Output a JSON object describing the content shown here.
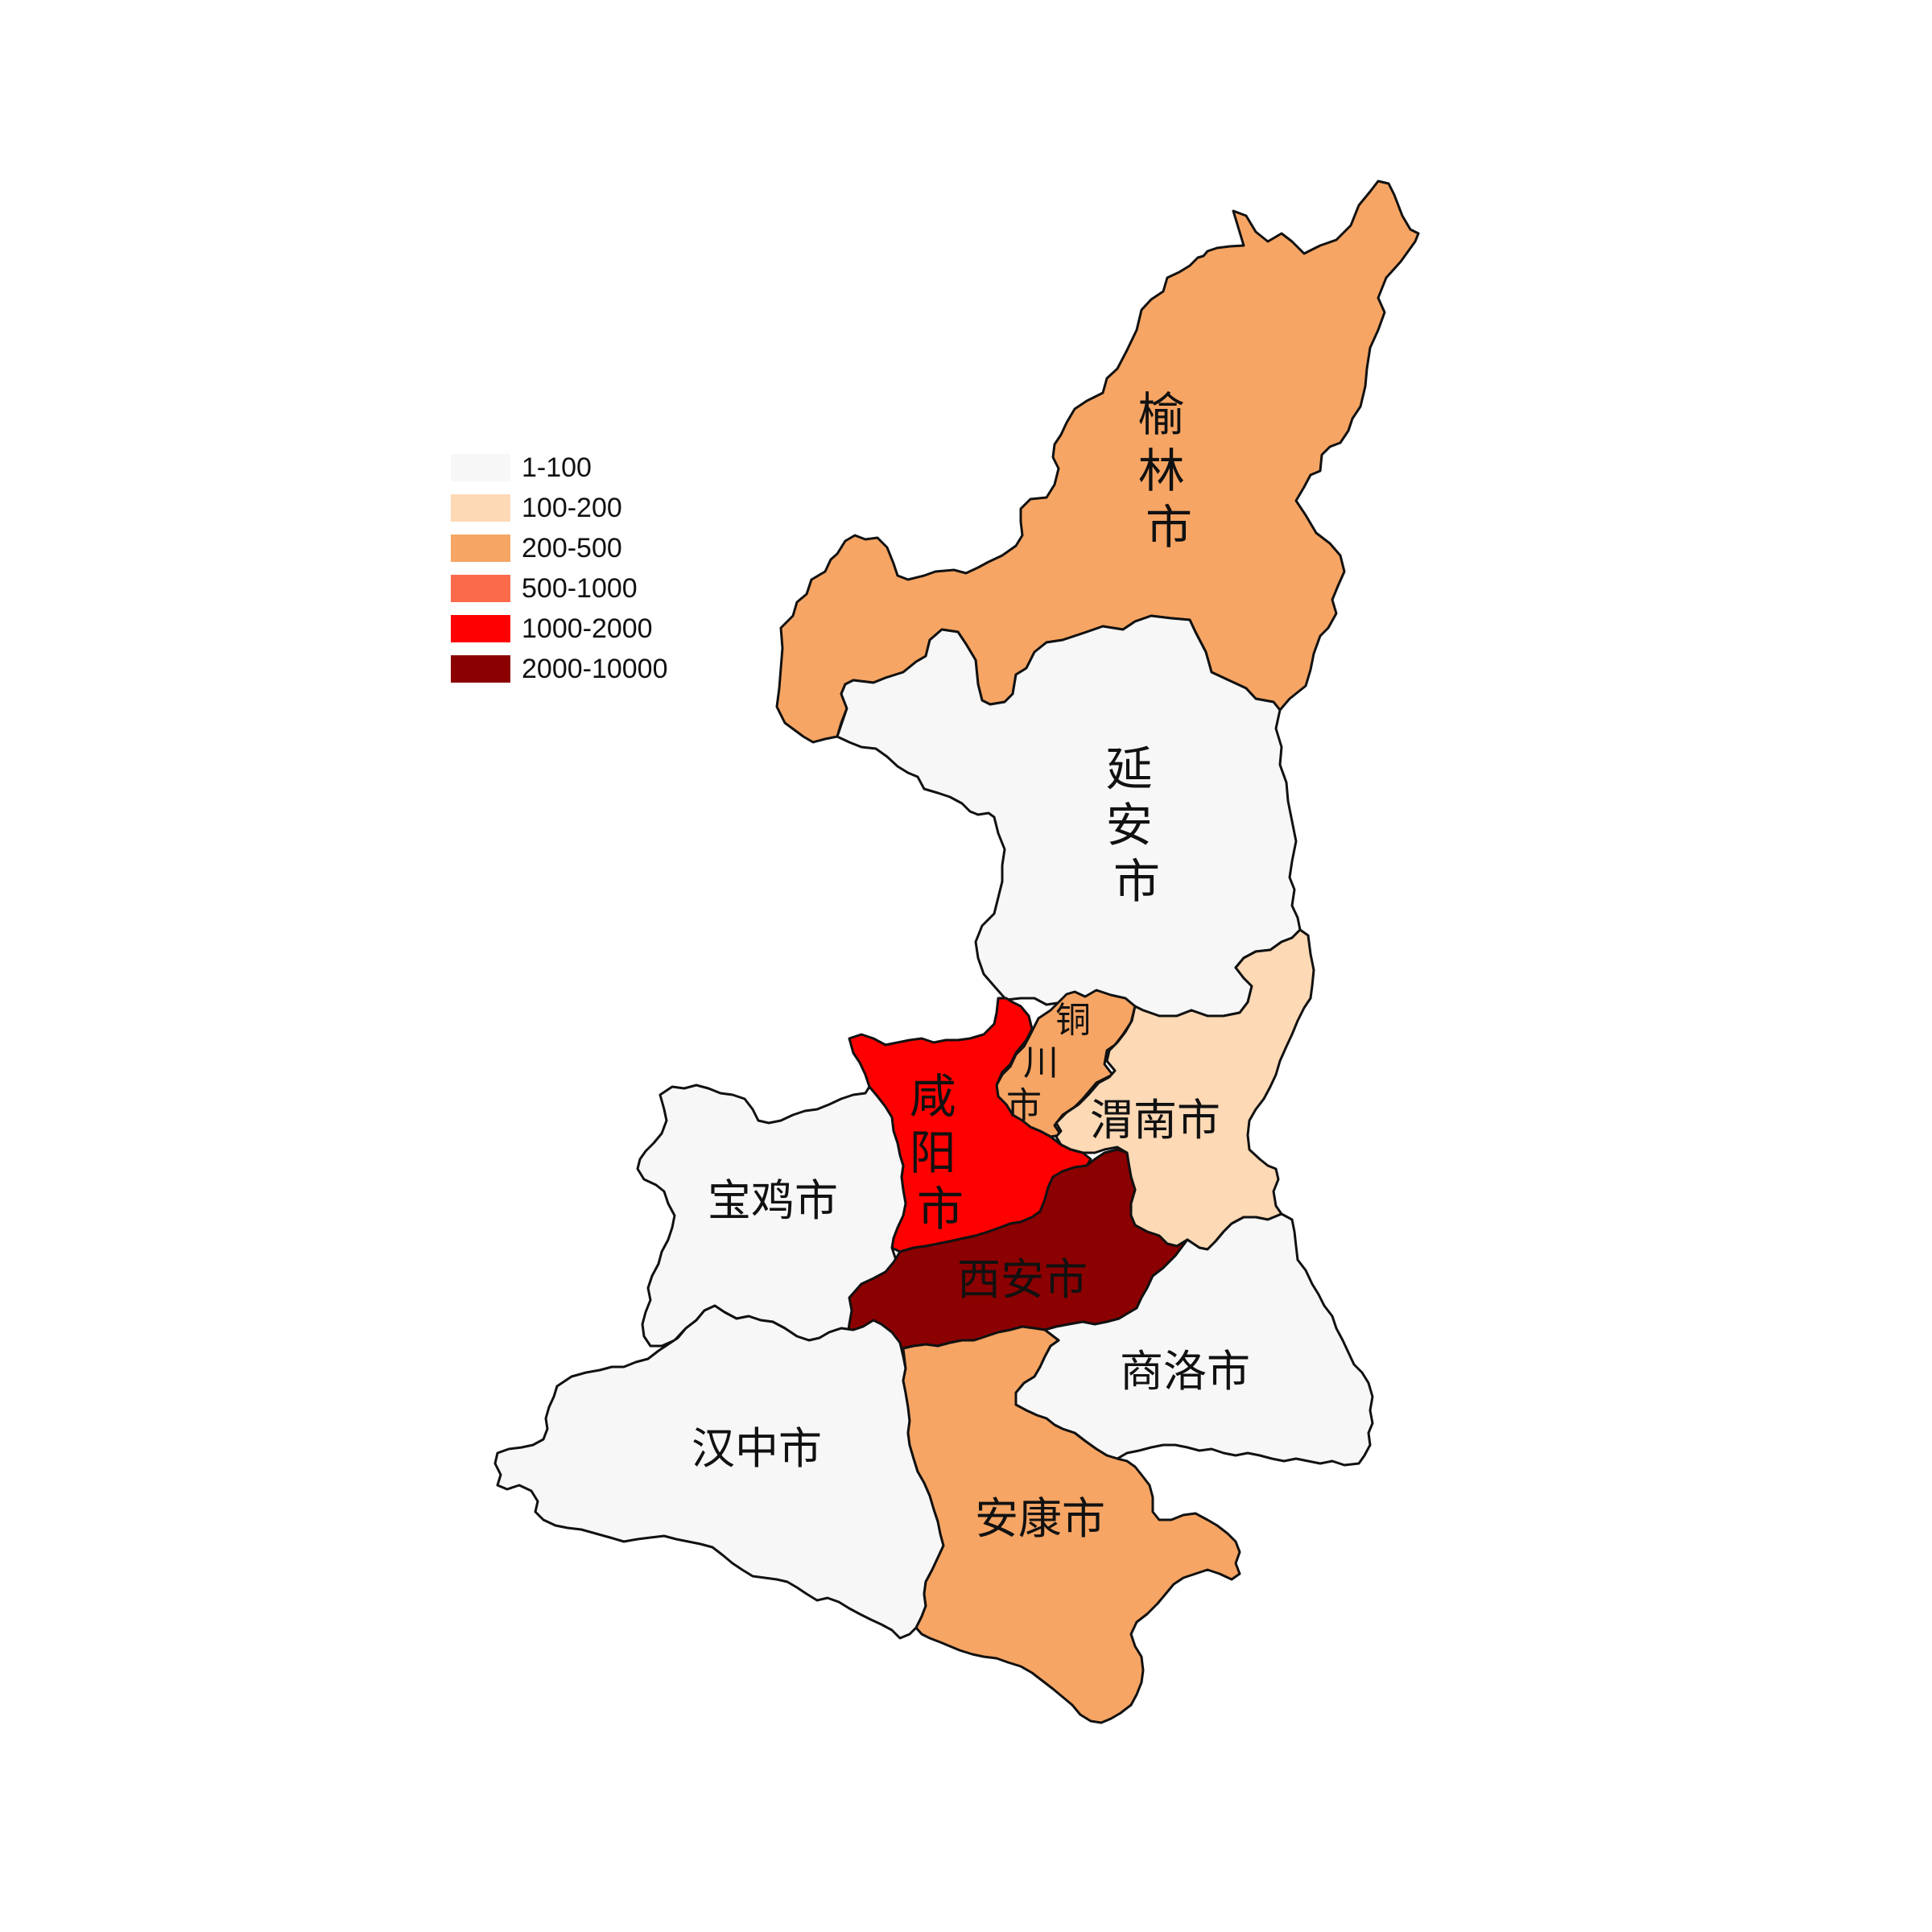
{
  "map": {
    "regions": [
      {
        "id": "yulin",
        "label": "榆林市",
        "bin": 2
      },
      {
        "id": "yanan",
        "label": "延安市",
        "bin": 0
      },
      {
        "id": "tongchuan",
        "label": "铜川市",
        "bin": 2
      },
      {
        "id": "weinan",
        "label": "渭南市",
        "bin": 1
      },
      {
        "id": "xianyang",
        "label": "咸阳市",
        "bin": 4
      },
      {
        "id": "baoji",
        "label": "宝鸡市",
        "bin": 0
      },
      {
        "id": "xian",
        "label": "西安市",
        "bin": 5
      },
      {
        "id": "shangluo",
        "label": "商洛市",
        "bin": 0
      },
      {
        "id": "hanzhong",
        "label": "汉中市",
        "bin": 0
      },
      {
        "id": "ankang",
        "label": "安康市",
        "bin": 2
      }
    ]
  },
  "legend": {
    "items": [
      {
        "label": "1-100",
        "color": "#f7f7f7"
      },
      {
        "label": "100-200",
        "color": "#fdd9b5"
      },
      {
        "label": "200-500",
        "color": "#f6a564"
      },
      {
        "label": "500-1000",
        "color": "#fb6a4a"
      },
      {
        "label": "1000-2000",
        "color": "#ff0000"
      },
      {
        "label": "2000-10000",
        "color": "#8b0000"
      }
    ]
  }
}
